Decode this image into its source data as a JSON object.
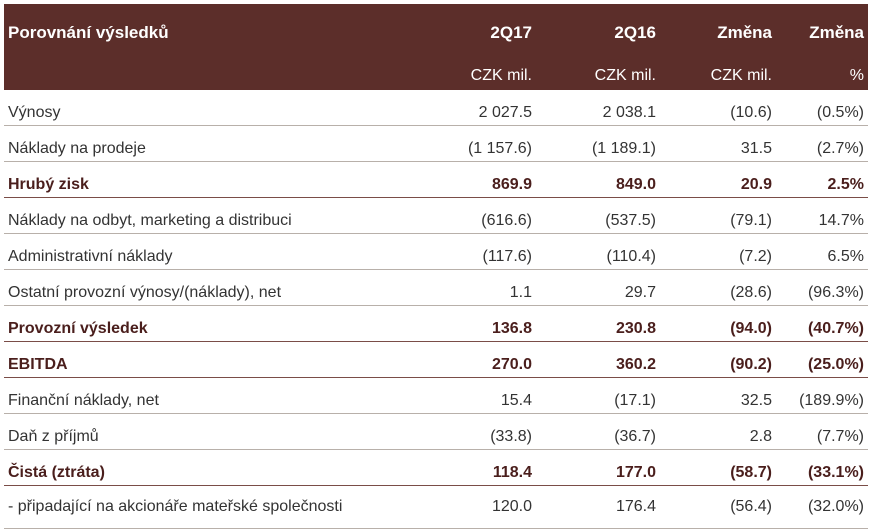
{
  "header": {
    "title": "Porovnání výsledků",
    "col1": "2Q17",
    "col2": "2Q16",
    "col3": "Změna",
    "col4": "Změna",
    "unit1": "CZK mil.",
    "unit2": "CZK mil.",
    "unit3": "CZK mil.",
    "unit4": "%"
  },
  "rows": [
    {
      "label": "Výnosy",
      "v1": "2 027.5",
      "v2": "2 038.1",
      "v3": "(10.6)",
      "v4": "(0.5%)"
    },
    {
      "label": "Náklady na prodeje",
      "v1": "(1 157.6)",
      "v2": "(1 189.1)",
      "v3": "31.5",
      "v4": "(2.7%)"
    },
    {
      "label": "Hrubý zisk",
      "v1": "869.9",
      "v2": "849.0",
      "v3": "20.9",
      "v4": "2.5%"
    },
    {
      "label": "Náklady na odbyt, marketing a distribuci",
      "v1": "(616.6)",
      "v2": "(537.5)",
      "v3": "(79.1)",
      "v4": "14.7%"
    },
    {
      "label": "Administrativní náklady",
      "v1": "(117.6)",
      "v2": "(110.4)",
      "v3": "(7.2)",
      "v4": "6.5%"
    },
    {
      "label": "Ostatní provozní výnosy/(náklady), net",
      "v1": "1.1",
      "v2": "29.7",
      "v3": "(28.6)",
      "v4": "(96.3%)"
    },
    {
      "label": "Provozní výsledek",
      "v1": "136.8",
      "v2": "230.8",
      "v3": "(94.0)",
      "v4": "(40.7%)"
    },
    {
      "label": "EBITDA",
      "v1": "270.0",
      "v2": "360.2",
      "v3": "(90.2)",
      "v4": "(25.0%)"
    },
    {
      "label": "Finanční náklady, net",
      "v1": "15.4",
      "v2": "(17.1)",
      "v3": "32.5",
      "v4": "(189.9%)"
    },
    {
      "label": "Daň z příjmů",
      "v1": "(33.8)",
      "v2": "(36.7)",
      "v3": "2.8",
      "v4": "(7.7%)"
    },
    {
      "label": "Čistá (ztráta)",
      "v1": "118.4",
      "v2": "177.0",
      "v3": "(58.7)",
      "v4": "(33.1%)"
    },
    {
      "label": "- připadající na akcionáře mateřské společnosti",
      "v1": "120.0",
      "v2": "176.4",
      "v3": "(56.4)",
      "v4": "(32.0%)"
    }
  ],
  "colors": {
    "header_bg": "#5c2e2a",
    "bold_text": "#4a1e1c"
  }
}
